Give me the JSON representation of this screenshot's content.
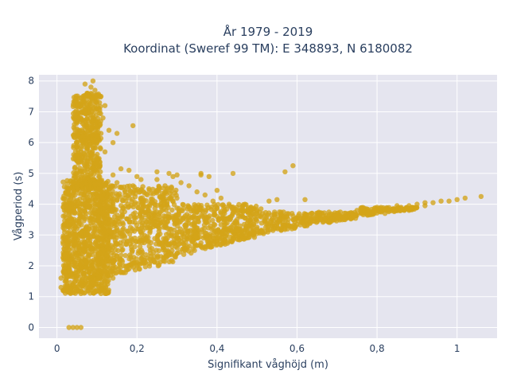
{
  "chart_data": {
    "type": "scatter",
    "title_line1": "År 1979 - 2019",
    "title_line2": "Koordinat (Sweref 99 TM): E 348893, N 6180082",
    "xlabel": "Signifikant våghöjd (m)",
    "ylabel": "Vågperiod (s)",
    "xlim": [
      -0.045,
      1.1
    ],
    "ylim": [
      -0.35,
      8.2
    ],
    "x_ticks": [
      0,
      0.2,
      0.4,
      0.6,
      0.8,
      1
    ],
    "x_tick_labels": [
      "0",
      "0,2",
      "0,4",
      "0,6",
      "0,8",
      "1"
    ],
    "y_ticks": [
      0,
      1,
      2,
      3,
      4,
      5,
      6,
      7,
      8
    ],
    "y_tick_labels": [
      "0",
      "1",
      "2",
      "3",
      "4",
      "5",
      "6",
      "7",
      "8"
    ],
    "grid": true,
    "legend": "none",
    "marker_color": "#d4a418",
    "background_color": "#e5e5ef",
    "points": [
      [
        0.03,
        0.0
      ],
      [
        0.04,
        0.0
      ],
      [
        0.05,
        0.0
      ],
      [
        0.06,
        0.0
      ],
      [
        0.01,
        1.3
      ],
      [
        0.01,
        1.6
      ],
      [
        0.015,
        1.2
      ],
      [
        0.02,
        1.5
      ],
      [
        0.02,
        1.8
      ],
      [
        0.02,
        2.3
      ],
      [
        0.025,
        2.7
      ],
      [
        0.03,
        3.1
      ],
      [
        0.03,
        3.5
      ],
      [
        0.035,
        3.9
      ],
      [
        0.04,
        4.3
      ],
      [
        0.04,
        4.7
      ],
      [
        0.045,
        5.2
      ],
      [
        0.05,
        5.6
      ],
      [
        0.05,
        6.0
      ],
      [
        0.055,
        6.4
      ],
      [
        0.06,
        6.8
      ],
      [
        0.06,
        7.2
      ],
      [
        0.065,
        7.5
      ],
      [
        0.07,
        7.9
      ],
      [
        0.075,
        7.6
      ],
      [
        0.08,
        7.3
      ],
      [
        0.085,
        7.8
      ],
      [
        0.09,
        8.0
      ],
      [
        0.095,
        7.7
      ],
      [
        0.1,
        7.4
      ],
      [
        0.105,
        7.1
      ],
      [
        0.11,
        7.5
      ],
      [
        0.12,
        7.2
      ],
      [
        0.115,
        6.8
      ],
      [
        0.06,
        5.8
      ],
      [
        0.065,
        6.2
      ],
      [
        0.07,
        5.5
      ],
      [
        0.075,
        6.6
      ],
      [
        0.08,
        5.9
      ],
      [
        0.085,
        6.4
      ],
      [
        0.09,
        5.2
      ],
      [
        0.1,
        6.0
      ],
      [
        0.11,
        6.3
      ],
      [
        0.12,
        5.7
      ],
      [
        0.13,
        6.4
      ],
      [
        0.14,
        6.0
      ],
      [
        0.15,
        6.3
      ],
      [
        0.19,
        6.55
      ],
      [
        0.09,
        6.9
      ],
      [
        0.1,
        6.5
      ],
      [
        0.02,
        2.0
      ],
      [
        0.03,
        2.4
      ],
      [
        0.04,
        2.8
      ],
      [
        0.05,
        3.2
      ],
      [
        0.06,
        3.6
      ],
      [
        0.07,
        4.0
      ],
      [
        0.08,
        4.4
      ],
      [
        0.09,
        4.8
      ],
      [
        0.1,
        5.1
      ],
      [
        0.05,
        4.6
      ],
      [
        0.07,
        4.9
      ],
      [
        0.09,
        4.2
      ],
      [
        0.11,
        4.6
      ],
      [
        0.13,
        4.5
      ],
      [
        0.15,
        4.7
      ],
      [
        0.17,
        4.4
      ],
      [
        0.19,
        4.6
      ],
      [
        0.21,
        4.8
      ],
      [
        0.23,
        4.5
      ],
      [
        0.25,
        4.8
      ],
      [
        0.27,
        4.6
      ],
      [
        0.29,
        4.9
      ],
      [
        0.31,
        4.7
      ],
      [
        0.33,
        4.6
      ],
      [
        0.35,
        4.4
      ],
      [
        0.37,
        4.3
      ],
      [
        0.39,
        4.1
      ],
      [
        0.41,
        4.2
      ],
      [
        0.43,
        4.0
      ],
      [
        0.45,
        3.9
      ],
      [
        0.47,
        4.0
      ],
      [
        0.49,
        3.8
      ],
      [
        0.51,
        3.85
      ],
      [
        0.55,
        4.15
      ],
      [
        0.57,
        5.05
      ],
      [
        0.59,
        5.25
      ],
      [
        0.44,
        5.0
      ],
      [
        0.38,
        4.9
      ],
      [
        0.36,
        4.95
      ],
      [
        0.53,
        4.1
      ],
      [
        0.4,
        4.45
      ],
      [
        0.02,
        1.2
      ],
      [
        0.04,
        1.4
      ],
      [
        0.06,
        1.1
      ],
      [
        0.08,
        1.3
      ],
      [
        0.1,
        1.2
      ],
      [
        0.12,
        1.4
      ],
      [
        0.11,
        1.1
      ],
      [
        0.14,
        1.6
      ],
      [
        0.16,
        1.8
      ],
      [
        0.18,
        1.9
      ],
      [
        0.2,
        2.0
      ],
      [
        0.22,
        2.1
      ],
      [
        0.24,
        2.2
      ],
      [
        0.26,
        2.3
      ],
      [
        0.28,
        2.35
      ],
      [
        0.3,
        2.4
      ],
      [
        0.32,
        2.5
      ],
      [
        0.34,
        2.55
      ],
      [
        0.36,
        2.65
      ],
      [
        0.38,
        2.7
      ],
      [
        0.4,
        2.8
      ],
      [
        0.42,
        2.85
      ],
      [
        0.44,
        2.9
      ],
      [
        0.46,
        2.95
      ],
      [
        0.48,
        3.0
      ],
      [
        0.5,
        3.05
      ],
      [
        0.52,
        3.1
      ],
      [
        0.54,
        3.15
      ],
      [
        0.56,
        3.2
      ],
      [
        0.58,
        3.3
      ],
      [
        0.6,
        3.35
      ],
      [
        0.62,
        3.4
      ],
      [
        0.64,
        3.45
      ],
      [
        0.66,
        3.5
      ],
      [
        0.68,
        3.55
      ],
      [
        0.7,
        3.6
      ],
      [
        0.72,
        3.6
      ],
      [
        0.74,
        3.65
      ],
      [
        0.76,
        3.7
      ],
      [
        0.78,
        3.75
      ],
      [
        0.8,
        3.8
      ],
      [
        0.82,
        3.85
      ],
      [
        0.84,
        3.85
      ],
      [
        0.86,
        3.9
      ],
      [
        0.88,
        3.95
      ],
      [
        0.9,
        4.0
      ],
      [
        0.92,
        4.05
      ],
      [
        0.94,
        4.05
      ],
      [
        0.96,
        4.1
      ],
      [
        0.98,
        4.1
      ],
      [
        1.0,
        4.15
      ],
      [
        1.02,
        4.2
      ],
      [
        1.06,
        4.25
      ],
      [
        0.15,
        3.0
      ],
      [
        0.2,
        3.2
      ],
      [
        0.25,
        3.3
      ],
      [
        0.3,
        3.5
      ],
      [
        0.35,
        3.55
      ],
      [
        0.4,
        3.6
      ],
      [
        0.45,
        3.5
      ],
      [
        0.5,
        3.45
      ],
      [
        0.55,
        3.5
      ],
      [
        0.6,
        3.55
      ],
      [
        0.65,
        3.65
      ],
      [
        0.7,
        3.7
      ],
      [
        0.75,
        3.8
      ],
      [
        0.8,
        3.9
      ],
      [
        0.85,
        3.95
      ],
      [
        0.3,
        2.8
      ],
      [
        0.35,
        2.9
      ],
      [
        0.4,
        3.05
      ],
      [
        0.45,
        3.15
      ],
      [
        0.5,
        3.25
      ],
      [
        0.55,
        3.3
      ],
      [
        0.62,
        3.3
      ],
      [
        0.68,
        3.45
      ],
      [
        0.72,
        3.5
      ],
      [
        0.78,
        3.65
      ],
      [
        0.82,
        3.7
      ],
      [
        0.88,
        3.8
      ],
      [
        0.92,
        3.95
      ],
      [
        0.62,
        4.15
      ],
      [
        0.36,
        5.0
      ],
      [
        0.3,
        4.95
      ],
      [
        0.18,
        5.1
      ],
      [
        0.16,
        5.15
      ],
      [
        0.25,
        5.05
      ],
      [
        0.28,
        5.0
      ],
      [
        0.14,
        4.95
      ],
      [
        0.2,
        4.9
      ]
    ]
  }
}
